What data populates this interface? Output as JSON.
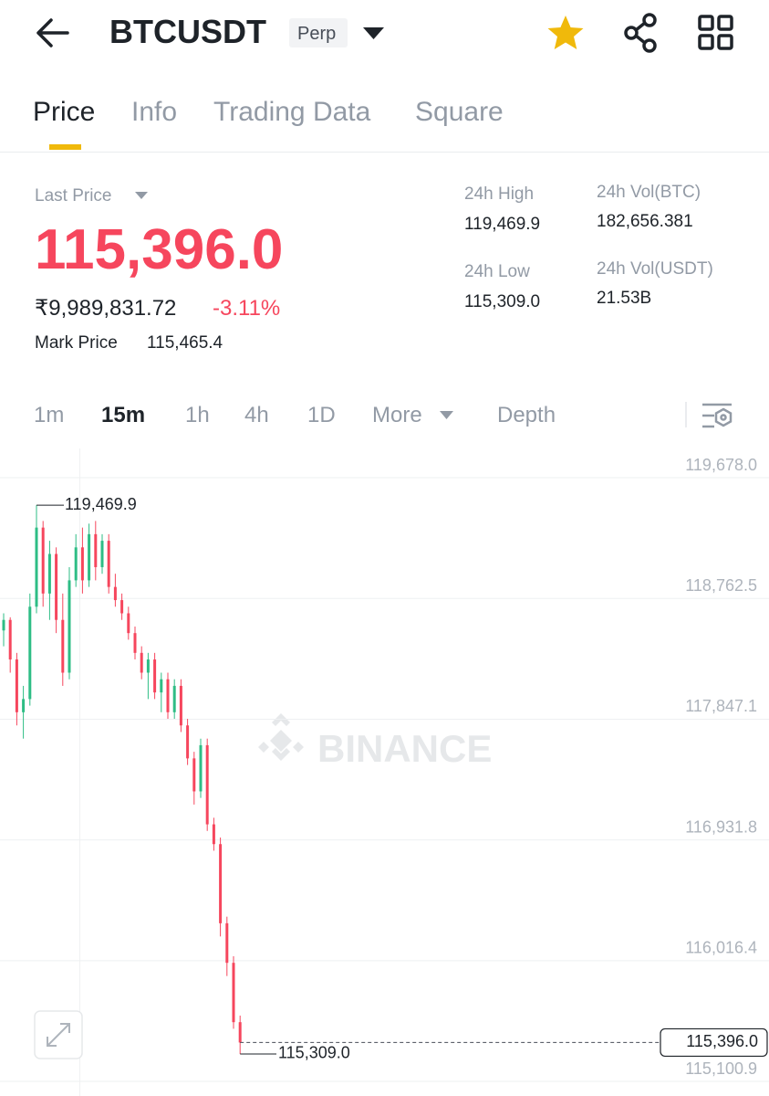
{
  "header": {
    "symbol": "BTCUSDT",
    "badge": "Perp"
  },
  "tabs": [
    "Price",
    "Info",
    "Trading Data",
    "Square"
  ],
  "summary": {
    "last_price_label": "Last Price",
    "last_price": "115,396.0",
    "local_price": "₹9,989,831.72",
    "change": "-3.11%",
    "mark_price_label": "Mark Price",
    "mark_price": "115,465.4"
  },
  "stats": [
    {
      "label": "24h High",
      "value": "119,469.9"
    },
    {
      "label": "24h Low",
      "value": "115,309.0"
    },
    {
      "label": "24h Vol(BTC)",
      "value": "182,656.381"
    },
    {
      "label": "24h Vol(USDT)",
      "value": "21.53B"
    }
  ],
  "intervals": [
    "1m",
    "15m",
    "1h",
    "4h",
    "1D",
    "More",
    "Depth"
  ],
  "watermark": "BINANCE",
  "chart_data": {
    "type": "candlestick",
    "open": [
      118520,
      118600,
      118300,
      117900,
      118000,
      118700,
      119300,
      118800,
      119100,
      118600,
      118200,
      118900,
      119150,
      118900,
      119250,
      119000,
      119200,
      118850,
      118750,
      118650,
      118500,
      118350,
      118200,
      118300,
      118050,
      118150,
      117900,
      118100,
      117800,
      117550,
      117300,
      117650,
      117050,
      116900,
      116300,
      116000,
      115550
    ],
    "high": [
      118650,
      118620,
      118350,
      118100,
      118800,
      119469.9,
      119350,
      119200,
      119150,
      118800,
      119000,
      119250,
      119300,
      119330,
      119350,
      119250,
      119250,
      118950,
      118800,
      118700,
      118550,
      118400,
      118350,
      118350,
      118200,
      118200,
      118150,
      118150,
      117850,
      117600,
      117700,
      117700,
      117100,
      116950,
      116350,
      116050,
      115600
    ],
    "low": [
      118400,
      118200,
      117800,
      117700,
      117950,
      118650,
      118700,
      118600,
      118500,
      118100,
      118150,
      118850,
      118800,
      118850,
      118900,
      118950,
      118800,
      118700,
      118600,
      118450,
      118300,
      118150,
      118000,
      118000,
      117900,
      117850,
      117850,
      117750,
      117500,
      117200,
      117250,
      117000,
      116850,
      116200,
      115900,
      115500,
      115309
    ],
    "close": [
      118600,
      118300,
      117900,
      118000,
      118700,
      119300,
      118800,
      119100,
      118600,
      118200,
      118900,
      119150,
      118900,
      119250,
      119000,
      119200,
      118850,
      118750,
      118650,
      118500,
      118350,
      118200,
      118300,
      118050,
      118150,
      117900,
      118100,
      117800,
      117550,
      117300,
      117650,
      117050,
      116900,
      116300,
      116000,
      115550,
      115396
    ],
    "up_color": "#2ebd85",
    "down_color": "#f6465d",
    "ylim": [
      115018,
      119900
    ],
    "yticks": [
      {
        "value": 115100.9,
        "label": "115,100.9"
      },
      {
        "value": 116016.4,
        "label": "116,016.4"
      },
      {
        "value": 116931.8,
        "label": "116,931.8"
      },
      {
        "value": 117847.1,
        "label": "117,847.1"
      },
      {
        "value": 118762.5,
        "label": "118,762.5"
      },
      {
        "value": 119678.0,
        "label": "119,678.0"
      }
    ],
    "grid": true,
    "high_marker": {
      "value": 119469.9,
      "label": "119,469.9"
    },
    "low_marker": {
      "value": 115309.0,
      "label": "115,309.0"
    },
    "last_marker": {
      "value": 115396.0,
      "label": "115,396.0"
    }
  }
}
